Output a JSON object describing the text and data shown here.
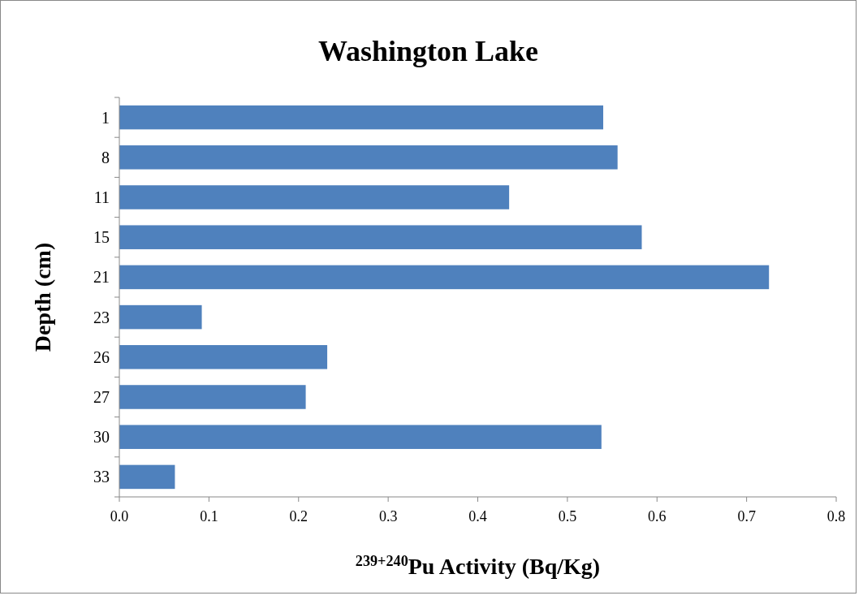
{
  "chart_data": {
    "type": "bar",
    "orientation": "horizontal",
    "title": "Washington Lake",
    "xlabel": "$^{239+240}$Pu Activity (Bq/Kg)",
    "ylabel": "Depth (cm)",
    "categories": [
      "1",
      "8",
      "11",
      "15",
      "21",
      "23",
      "26",
      "27",
      "30",
      "33"
    ],
    "values": [
      0.54,
      0.556,
      0.435,
      0.583,
      0.725,
      0.092,
      0.232,
      0.208,
      0.538,
      0.062
    ],
    "color": "#4f81bd",
    "xlim": [
      0,
      0.8
    ],
    "xticks": [
      {
        "value": 0,
        "label": "0.0"
      },
      {
        "value": 0.1,
        "label": "0.1"
      },
      {
        "value": 0.2,
        "label": "0.2"
      },
      {
        "value": 0.3,
        "label": "0.3"
      },
      {
        "value": 0.4,
        "label": "0.4"
      },
      {
        "value": 0.5,
        "label": "0.5"
      },
      {
        "value": 0.6,
        "label": "0.6"
      },
      {
        "value": 0.7,
        "label": "0.7"
      },
      {
        "value": 0.8,
        "label": "0.8"
      }
    ],
    "grid": false
  }
}
